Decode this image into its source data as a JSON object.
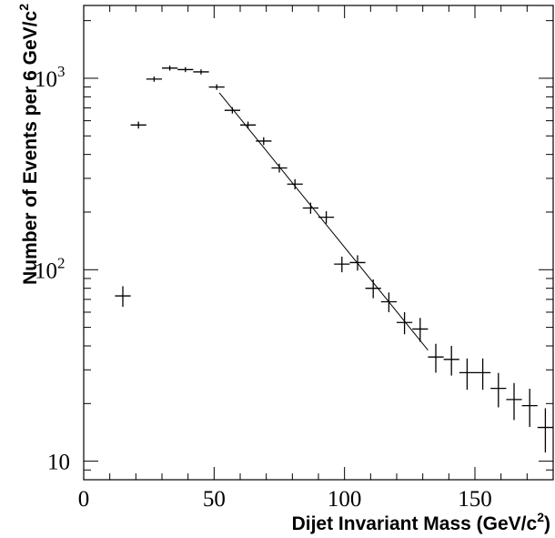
{
  "chart_data": {
    "type": "scatter",
    "title": "",
    "xlabel": "Dijet Invariant Mass (GeV/c",
    "xlabel_sup": "2",
    "xlabel_end": ")",
    "ylabel": "Number of Events per 6 GeV/c",
    "ylabel_sup": "2",
    "xlim": [
      0,
      180
    ],
    "ylim": [
      8,
      2400
    ],
    "yscale": "log",
    "grid": false,
    "x_ticks": [
      {
        "value": 0,
        "label": "0"
      },
      {
        "value": 50,
        "label": "50"
      },
      {
        "value": 100,
        "label": "100"
      },
      {
        "value": 150,
        "label": "150"
      }
    ],
    "y_ticks": [
      {
        "value": 10,
        "label": "10",
        "sup": ""
      },
      {
        "value": 100,
        "label": "10",
        "sup": "2"
      },
      {
        "value": 1000,
        "label": "10",
        "sup": "3"
      }
    ],
    "series": [
      {
        "points": [
          {
            "x": 15,
            "y": 73,
            "yerr": 9
          },
          {
            "x": 21,
            "y": 570,
            "yerr": 24
          },
          {
            "x": 27,
            "y": 990,
            "yerr": 31
          },
          {
            "x": 33,
            "y": 1130,
            "yerr": 34
          },
          {
            "x": 39,
            "y": 1110,
            "yerr": 33
          },
          {
            "x": 45,
            "y": 1080,
            "yerr": 33
          },
          {
            "x": 51,
            "y": 900,
            "yerr": 30
          },
          {
            "x": 57,
            "y": 680,
            "yerr": 26
          },
          {
            "x": 63,
            "y": 570,
            "yerr": 24
          },
          {
            "x": 69,
            "y": 470,
            "yerr": 22
          },
          {
            "x": 75,
            "y": 340,
            "yerr": 18
          },
          {
            "x": 81,
            "y": 280,
            "yerr": 17
          },
          {
            "x": 87,
            "y": 210,
            "yerr": 14
          },
          {
            "x": 93,
            "y": 188,
            "yerr": 14
          },
          {
            "x": 99,
            "y": 107,
            "yerr": 10
          },
          {
            "x": 105,
            "y": 109,
            "yerr": 10
          },
          {
            "x": 111,
            "y": 80,
            "yerr": 9
          },
          {
            "x": 117,
            "y": 68,
            "yerr": 8
          },
          {
            "x": 123,
            "y": 53,
            "yerr": 7
          },
          {
            "x": 129,
            "y": 49,
            "yerr": 7
          },
          {
            "x": 135,
            "y": 35,
            "yerr": 6
          },
          {
            "x": 141,
            "y": 34,
            "yerr": 6
          },
          {
            "x": 147,
            "y": 29,
            "yerr": 5.4
          },
          {
            "x": 153,
            "y": 29,
            "yerr": 5.4
          },
          {
            "x": 159,
            "y": 24,
            "yerr": 4.9
          },
          {
            "x": 165,
            "y": 21,
            "yerr": 4.6
          },
          {
            "x": 171,
            "y": 19.5,
            "yerr": 4.4
          },
          {
            "x": 177,
            "y": 15,
            "yerr": 3.9
          }
        ]
      }
    ],
    "fit_line": {
      "x": [
        52,
        132
      ],
      "y": [
        840,
        38
      ]
    }
  }
}
